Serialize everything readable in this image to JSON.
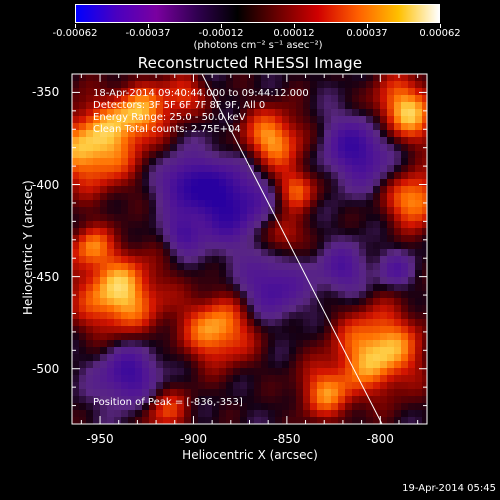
{
  "colorbar": {
    "tick_labels": [
      "-0.00062",
      "-0.00037",
      "-0.00012",
      "0.00012",
      "0.00037",
      "0.00062"
    ],
    "units": "(photons cm⁻² s⁻¹ asec⁻²)",
    "colors": [
      "#0000ff",
      "#4a00c0",
      "#7a00a0",
      "#300050",
      "#000000",
      "#6a0000",
      "#d00000",
      "#ff6000",
      "#ffc000",
      "#ffffff"
    ]
  },
  "title": "Reconstructed RHESSI Image",
  "annotations": {
    "time_range": "18-Apr-2014 09:40:44.000 to 09:44:12.000",
    "detectors": "Detectors: 3F 5F 6F 7F 8F 9F, All 0",
    "energy": "Energy Range: 25.0 - 50.0 keV",
    "method": "Clean    Total counts: 2.75E+04",
    "peak": "Position of Peak = [-836,-353]"
  },
  "axes": {
    "xlabel": "Heliocentric X (arcsec)",
    "ylabel": "Heliocentric Y (arcsec)",
    "xticks": [
      "-950",
      "-900",
      "-850",
      "-800"
    ],
    "yticks": [
      "-350",
      "-400",
      "-450",
      "-500"
    ],
    "xlim": [
      -965,
      -775
    ],
    "ylim": [
      -530,
      -340
    ]
  },
  "footer": {
    "timestamp": "19-Apr-2014 05:45"
  }
}
